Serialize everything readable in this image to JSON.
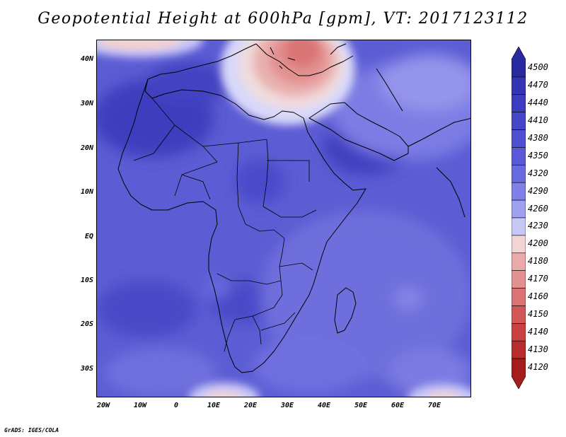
{
  "title": "Geopotential Height at 600hPa [gpm], VT: 2017123112",
  "footer": "GrADS: IGES/COLA",
  "lat_labels": [
    "40N",
    "30N",
    "20N",
    "10N",
    "EQ",
    "10S",
    "20S",
    "30S"
  ],
  "lon_labels": [
    "20W",
    "10W",
    "0",
    "10E",
    "20E",
    "30E",
    "40E",
    "50E",
    "60E",
    "70E"
  ],
  "colorbar": {
    "levels": [
      "4500",
      "4470",
      "4440",
      "4410",
      "4380",
      "4350",
      "4320",
      "4290",
      "4260",
      "4230",
      "4200",
      "4180",
      "4170",
      "4160",
      "4150",
      "4140",
      "4130",
      "4120"
    ],
    "colors": [
      "#2a2aa0",
      "#3434b4",
      "#3c3cc0",
      "#4646c8",
      "#5050d2",
      "#5a5ad8",
      "#6a6ae0",
      "#8080e8",
      "#a0a0f0",
      "#c8c8f8",
      "#f2d4d4",
      "#eaaaaa",
      "#e29090",
      "#da7474",
      "#d25858",
      "#c84040",
      "#b82c2c",
      "#a41c1c"
    ]
  },
  "map": {
    "background_color": "#5a5ad2",
    "coast_color": "#000000"
  }
}
